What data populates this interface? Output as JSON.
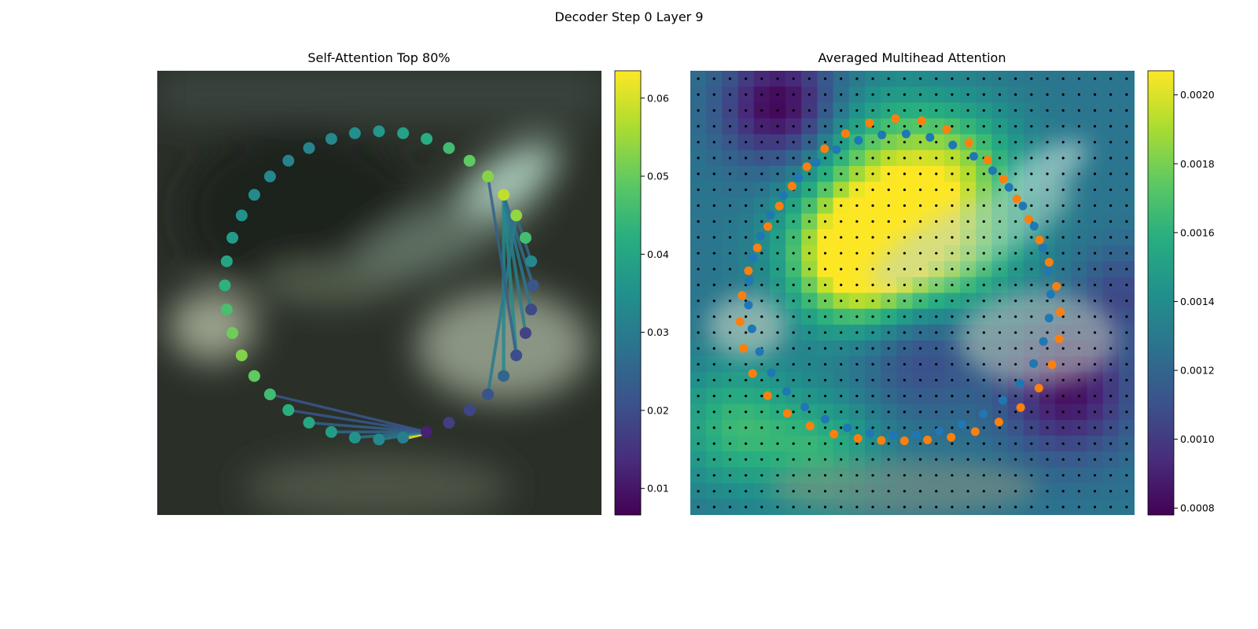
{
  "figure": {
    "suptitle": "Decoder Step 0 Layer 9"
  },
  "panels": [
    {
      "title": "Self-Attention Top 80%"
    },
    {
      "title": "Averaged Multihead Attention"
    }
  ],
  "chart_data": [
    {
      "type": "scatter",
      "title": "Self-Attention Top 80%",
      "description_free": true,
      "colormap": "viridis",
      "colorbar": {
        "range": [
          0.0066,
          0.0635
        ],
        "ticks": [
          0.01,
          0.02,
          0.03,
          0.04,
          0.05,
          0.06
        ]
      },
      "points": {
        "count": 40,
        "values": [
          0.0307,
          0.0332,
          0.0356,
          0.0379,
          0.0402,
          0.0423,
          0.0455,
          0.0495,
          0.0525,
          0.0508,
          0.0465,
          0.043,
          0.04,
          0.0375,
          0.035,
          0.0337,
          0.0325,
          0.0318,
          0.032,
          0.033,
          0.0345,
          0.0365,
          0.039,
          0.042,
          0.0455,
          0.0495,
          0.053,
          0.058,
          0.054,
          0.046,
          0.033,
          0.022,
          0.019,
          0.018,
          0.02,
          0.025,
          0.021,
          0.0185,
          0.017,
          0.012
        ]
      },
      "edges": [
        {
          "from": 39,
          "to": 0,
          "weight": 0.0635
        },
        {
          "from": 39,
          "to": 1,
          "weight": 0.03
        },
        {
          "from": 39,
          "to": 2,
          "weight": 0.028
        },
        {
          "from": 39,
          "to": 3,
          "weight": 0.026
        },
        {
          "from": 39,
          "to": 4,
          "weight": 0.024
        },
        {
          "from": 39,
          "to": 5,
          "weight": 0.022
        },
        {
          "from": 39,
          "to": 6,
          "weight": 0.022
        },
        {
          "from": 27,
          "to": 34,
          "weight": 0.034
        },
        {
          "from": 27,
          "to": 35,
          "weight": 0.033
        },
        {
          "from": 27,
          "to": 33,
          "weight": 0.031
        },
        {
          "from": 27,
          "to": 32,
          "weight": 0.029
        },
        {
          "from": 27,
          "to": 31,
          "weight": 0.027
        },
        {
          "from": 28,
          "to": 36,
          "weight": 0.03
        },
        {
          "from": 28,
          "to": 30,
          "weight": 0.026
        },
        {
          "from": 26,
          "to": 34,
          "weight": 0.024
        }
      ]
    },
    {
      "type": "heatmap",
      "title": "Averaged Multihead Attention",
      "colormap": "viridis",
      "colorbar": {
        "range": [
          0.00078,
          0.00207
        ],
        "ticks": [
          0.0008,
          0.001,
          0.0012,
          0.0014,
          0.0016,
          0.0018,
          0.002
        ]
      },
      "grid": {
        "rows": 28,
        "cols": 28
      },
      "overlays": [
        {
          "color": "#1f77b4",
          "count": 40
        },
        {
          "color": "#ff7f0e",
          "count": 40
        }
      ]
    }
  ]
}
